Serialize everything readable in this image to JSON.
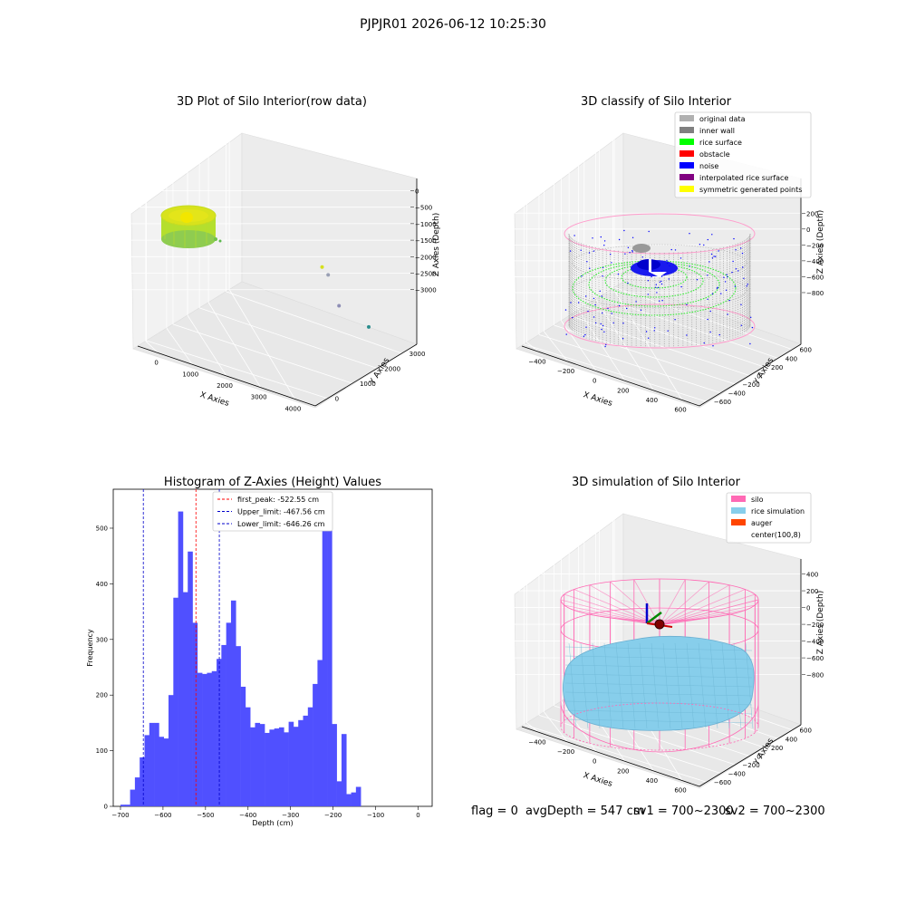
{
  "figure": {
    "suptitle": "PJPJR01 2026-06-12 10:25:30"
  },
  "status": {
    "flag": "flag = 0",
    "avg_depth": "avgDepth = 547 cm",
    "sv1": "sv1 = 700~2300",
    "sv2": "sv2 = 700~2300"
  },
  "colors": {
    "histogram_bar": "#5050ff",
    "first_peak_line": "#ff0000",
    "limit_line": "#0000cc",
    "silo": "#ff69b4",
    "rice_simulation": "#87ceeb",
    "auger": "#ff4500",
    "original_data": "#b0b0b0",
    "inner_wall": "#808080",
    "rice_surface": "#00ff00",
    "obstacle": "#ff0000",
    "noise": "#0000ff",
    "interpolated_rice_surface": "#800080",
    "symmetric_generated_points": "#ffff00"
  },
  "chart_data": [
    {
      "type": "scatter",
      "title": "3D Plot of Silo Interior(row data)",
      "xlabel": "X Axies",
      "ylabel": "Y Axies",
      "zlabel": "Z Axies (Depth)",
      "x_ticks": [
        "0",
        "1000",
        "2000",
        "3000",
        "4000"
      ],
      "y_ticks": [
        "0",
        "1000",
        "2000",
        "3000"
      ],
      "z_ticks": [
        "0",
        "−500",
        "−1000",
        "−1500",
        "−2000",
        "−2500",
        "−3000"
      ],
      "xlim": [
        -700,
        4400
      ],
      "ylim": [
        -700,
        3800
      ],
      "zlim": [
        -3300,
        100
      ],
      "outlier_points": [
        {
          "x": 3000,
          "y": 2300,
          "z": -1450
        },
        {
          "x": 2800,
          "y": 3000,
          "z": -1900
        },
        {
          "x": 2900,
          "y": 3400,
          "z": -2700
        },
        {
          "x": 3700,
          "y": 3500,
          "z": -3000
        }
      ]
    },
    {
      "type": "scatter",
      "title": "3D classify of Silo Interior",
      "xlabel": "X Axies",
      "ylabel": "Y Axies",
      "zlabel": "Z Axies (Depth)",
      "x_ticks": [
        "−400",
        "−200",
        "0",
        "200",
        "400",
        "600"
      ],
      "y_ticks": [
        "−600",
        "−400",
        "−200",
        "0",
        "200",
        "400",
        "600"
      ],
      "z_ticks": [
        "200",
        "0",
        "−200",
        "−400",
        "−600",
        "−800"
      ],
      "xlim": [
        -600,
        700
      ],
      "ylim": [
        -650,
        700
      ],
      "zlim": [
        -900,
        300
      ],
      "legend": [
        {
          "label": "original data",
          "color": "#b0b0b0"
        },
        {
          "label": "inner wall",
          "color": "#808080"
        },
        {
          "label": "rice surface",
          "color": "#00ff00"
        },
        {
          "label": "obstacle",
          "color": "#ff0000"
        },
        {
          "label": "noise",
          "color": "#0000ff"
        },
        {
          "label": "interpolated rice surface",
          "color": "#800080"
        },
        {
          "label": "symmetric generated points",
          "color": "#ffff00"
        }
      ],
      "legend_placement": "top-right"
    },
    {
      "type": "bar",
      "title": "Histogram of Z-Axies (Height) Values",
      "xlabel": "Depth (cm)",
      "ylabel": "Frequency",
      "xlim": [
        -717,
        33
      ],
      "ylim": [
        0,
        570
      ],
      "x_ticks": [
        -700,
        -600,
        -500,
        -400,
        -300,
        -200,
        -100,
        0
      ],
      "y_ticks": [
        0,
        100,
        200,
        300,
        400,
        500
      ],
      "bin_start": -700,
      "bin_width": 11.3,
      "values": [
        3,
        3,
        30,
        52,
        88,
        128,
        150,
        150,
        125,
        122,
        200,
        375,
        530,
        385,
        458,
        330,
        240,
        238,
        240,
        243,
        265,
        290,
        330,
        370,
        288,
        215,
        178,
        142,
        150,
        148,
        132,
        138,
        140,
        142,
        133,
        152,
        143,
        155,
        163,
        178,
        220,
        263,
        545,
        525,
        148,
        45,
        130,
        22,
        25,
        35
      ],
      "lines": [
        {
          "label": "first_peak: -522.55 cm",
          "x": -522.55,
          "color": "#ff0000"
        },
        {
          "label": "Upper_limit: -467.56 cm",
          "x": -467.56,
          "color": "#0000cc"
        },
        {
          "label": "Lower_limit: -646.26 cm",
          "x": -646.26,
          "color": "#0000cc"
        }
      ],
      "legend_placement": "top-center"
    },
    {
      "type": "area",
      "title": "3D simulation of Silo Interior",
      "xlabel": "X Axies",
      "ylabel": "Y Axies",
      "zlabel": "Z Axies (Depth)",
      "x_ticks": [
        "−400",
        "−200",
        "0",
        "200",
        "400",
        "600"
      ],
      "y_ticks": [
        "−600",
        "−400",
        "−200",
        "0",
        "200",
        "400",
        "600"
      ],
      "z_ticks": [
        "400",
        "200",
        "0",
        "−200",
        "−400",
        "−600",
        "−800"
      ],
      "xlim": [
        -600,
        700
      ],
      "ylim": [
        -650,
        700
      ],
      "zlim": [
        -900,
        450
      ],
      "legend": [
        {
          "label": "silo",
          "color": "#ff69b4"
        },
        {
          "label": "rice simulation",
          "color": "#87ceeb"
        },
        {
          "label": "auger",
          "color": "#ff4500"
        },
        {
          "label": "center(100,8)",
          "color": ""
        }
      ],
      "legend_placement": "top-right"
    }
  ]
}
